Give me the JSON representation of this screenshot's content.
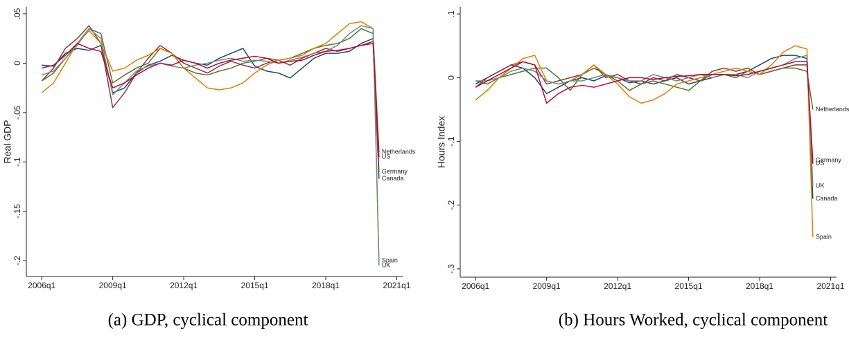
{
  "chart_data": [
    {
      "type": "line",
      "y_label": "Real GDP",
      "caption": "(a) GDP, cyclical component",
      "x": [
        2006,
        2006.5,
        2007,
        2007.5,
        2008,
        2008.5,
        2009,
        2009.5,
        2010,
        2010.5,
        2011,
        2011.5,
        2012,
        2012.5,
        2013,
        2013.5,
        2014,
        2014.5,
        2015,
        2015.5,
        2016,
        2016.5,
        2017,
        2017.5,
        2018,
        2018.5,
        2019,
        2019.5,
        2020,
        2020.25
      ],
      "xlim": [
        2005.35,
        2021.25
      ],
      "xticks": [
        {
          "value": 2006,
          "label": "2006q1"
        },
        {
          "value": 2009,
          "label": "2009q1"
        },
        {
          "value": 2012,
          "label": "2012q1"
        },
        {
          "value": 2015,
          "label": "2015q1"
        },
        {
          "value": 2018,
          "label": "2018q1"
        },
        {
          "value": 2021,
          "label": "2021q1"
        }
      ],
      "ylim": [
        -0.216,
        0.057
      ],
      "yticks": [
        {
          "value": 0.05,
          "label": ".05"
        },
        0,
        {
          "value": -0.05,
          "label": "-.05"
        },
        {
          "value": -0.1,
          "label": "-.1"
        },
        {
          "value": -0.15,
          "label": "-.15"
        },
        {
          "value": -0.2,
          "label": "-.2"
        }
      ],
      "series": [
        {
          "name": "Canada",
          "color": "#1a476f",
          "values": [
            -0.002,
            -0.003,
            0.01,
            0.015,
            0.013,
            0.018,
            -0.03,
            -0.025,
            -0.01,
            -0.002,
            0.002,
            0.008,
            0.003,
            0,
            -0.002,
            0.005,
            0.01,
            0.015,
            -0.003,
            -0.008,
            -0.01,
            -0.015,
            -0.005,
            0.005,
            0.01,
            0.01,
            0.012,
            0.02,
            0.025,
            -0.117
          ]
        },
        {
          "name": "Germany",
          "color": "#90353b",
          "values": [
            -0.018,
            -0.005,
            0.015,
            0.025,
            0.038,
            0.02,
            -0.045,
            -0.03,
            -0.01,
            0.005,
            0.018,
            0.01,
            0,
            -0.005,
            -0.01,
            -0.003,
            0.002,
            -0.002,
            -0.005,
            0,
            0.003,
            -0.002,
            0.005,
            0.01,
            0.015,
            0.012,
            0.015,
            0.018,
            0.022,
            -0.11
          ]
        },
        {
          "name": "Netherlands",
          "color": "#55752f",
          "values": [
            -0.018,
            -0.01,
            0.005,
            0.02,
            0.035,
            0.03,
            -0.02,
            -0.012,
            -0.005,
            0,
            0.015,
            0.01,
            -0.005,
            -0.01,
            -0.012,
            -0.008,
            -0.005,
            0,
            0.002,
            0.005,
            0.003,
            0.005,
            0.01,
            0.015,
            0.018,
            0.02,
            0.025,
            0.035,
            0.03,
            -0.09
          ]
        },
        {
          "name": "Spain",
          "color": "#e37e00",
          "values": [
            -0.03,
            -0.02,
            0,
            0.02,
            0.033,
            0.02,
            -0.008,
            -0.005,
            0.003,
            0.008,
            0.015,
            0.01,
            -0.005,
            -0.015,
            -0.025,
            -0.027,
            -0.025,
            -0.02,
            -0.01,
            -0.002,
            0.003,
            0.005,
            0.008,
            0.015,
            0.02,
            0.03,
            0.04,
            0.042,
            0.035,
            -0.2
          ]
        },
        {
          "name": "UK",
          "color": "#6e8e84",
          "values": [
            -0.012,
            -0.008,
            0.005,
            0.018,
            0.035,
            0.025,
            -0.032,
            -0.02,
            -0.008,
            -0.003,
            0,
            -0.003,
            -0.005,
            -0.002,
            0,
            0.003,
            0.005,
            0.002,
            0.003,
            0.002,
            0,
            0.003,
            0.006,
            0.01,
            0.012,
            0.018,
            0.03,
            0.038,
            0.035,
            -0.205
          ]
        },
        {
          "name": "US",
          "color": "#c10534",
          "values": [
            -0.005,
            -0.002,
            0.008,
            0.02,
            0.015,
            0.012,
            -0.025,
            -0.02,
            -0.012,
            -0.005,
            0,
            -0.002,
            0.003,
            0,
            -0.005,
            0,
            0.003,
            0.005,
            0.007,
            0.005,
            0,
            0.002,
            0.003,
            0.008,
            0.012,
            0.013,
            0.015,
            0.018,
            0.02,
            -0.095
          ]
        }
      ]
    },
    {
      "type": "line",
      "y_label": "Hours Index",
      "caption": "(b) Hours Worked, cyclical component",
      "x": [
        2006,
        2006.5,
        2007,
        2007.5,
        2008,
        2008.5,
        2009,
        2009.5,
        2010,
        2010.5,
        2011,
        2011.5,
        2012,
        2012.5,
        2013,
        2013.5,
        2014,
        2014.5,
        2015,
        2015.5,
        2016,
        2016.5,
        2017,
        2017.5,
        2018,
        2018.5,
        2019,
        2019.5,
        2020,
        2020.25
      ],
      "xlim": [
        2005.35,
        2021.25
      ],
      "xticks": [
        {
          "value": 2006,
          "label": "2006q1"
        },
        {
          "value": 2009,
          "label": "2009q1"
        },
        {
          "value": 2012,
          "label": "2012q1"
        },
        {
          "value": 2015,
          "label": "2015q1"
        },
        {
          "value": 2018,
          "label": "2018q1"
        },
        {
          "value": 2021,
          "label": "2021q1"
        }
      ],
      "ylim": [
        -0.313,
        0.111
      ],
      "yticks": [
        {
          "value": 0.1,
          "label": ".1"
        },
        0,
        {
          "value": -0.1,
          "label": "-.1"
        },
        {
          "value": -0.2,
          "label": "-.2"
        },
        {
          "value": -0.3,
          "label": "-.3"
        }
      ],
      "series": [
        {
          "name": "Canada",
          "color": "#1a476f",
          "values": [
            -0.01,
            0,
            0.01,
            0.02,
            0.015,
            0,
            -0.025,
            -0.015,
            -0.005,
            0,
            -0.005,
            0.003,
            0,
            -0.008,
            -0.005,
            -0.01,
            -0.005,
            0,
            -0.01,
            -0.005,
            0,
            0.005,
            0.005,
            0.01,
            0.02,
            0.03,
            0.035,
            0.035,
            0.03,
            -0.19
          ]
        },
        {
          "name": "Germany",
          "color": "#90353b",
          "values": [
            -0.015,
            0,
            0.01,
            0.02,
            0.025,
            0.02,
            -0.01,
            -0.005,
            0,
            0.005,
            0.02,
            0,
            0.005,
            -0.005,
            -0.01,
            0,
            -0.005,
            0.005,
            0,
            -0.005,
            0.01,
            0.015,
            0.01,
            0.015,
            0.005,
            0.01,
            0.015,
            0.02,
            0.02,
            -0.13
          ]
        },
        {
          "name": "Netherlands",
          "color": "#55752f",
          "values": [
            -0.005,
            -0.01,
            0,
            0.005,
            0.01,
            0.015,
            0.015,
            0,
            -0.02,
            0.005,
            0.015,
            0.005,
            -0.005,
            -0.02,
            -0.01,
            -0.005,
            -0.01,
            -0.015,
            -0.02,
            -0.005,
            0.005,
            0.005,
            0,
            0.01,
            0.005,
            0.01,
            0.015,
            0.015,
            0.01,
            -0.05
          ]
        },
        {
          "name": "Spain",
          "color": "#e37e00",
          "values": [
            -0.035,
            -0.02,
            0,
            0.015,
            0.03,
            0.035,
            -0.005,
            -0.01,
            -0.005,
            0.005,
            0.02,
            0.005,
            -0.01,
            -0.03,
            -0.04,
            -0.035,
            -0.025,
            -0.01,
            -0.005,
            0,
            0.005,
            0.01,
            0.015,
            0.01,
            0.005,
            0.02,
            0.04,
            0.05,
            0.045,
            -0.25
          ]
        },
        {
          "name": "UK",
          "color": "#6e8e84",
          "values": [
            -0.005,
            -0.005,
            0,
            0.01,
            0.015,
            0.01,
            -0.005,
            -0.01,
            -0.005,
            -0.005,
            0,
            0.005,
            0,
            -0.005,
            -0.005,
            0.005,
            0,
            -0.005,
            0,
            0.005,
            0,
            0.005,
            0.005,
            0,
            0.01,
            0.015,
            0.02,
            0.03,
            0.035,
            -0.17
          ]
        },
        {
          "name": "US",
          "color": "#c10534",
          "values": [
            -0.015,
            -0.005,
            0.005,
            0.015,
            0.025,
            0.02,
            -0.04,
            -0.025,
            -0.015,
            -0.012,
            -0.015,
            -0.01,
            -0.005,
            0,
            0,
            -0.003,
            0,
            0.002,
            0.003,
            0.005,
            0.005,
            0.005,
            0.003,
            0.005,
            0.01,
            0.015,
            0.02,
            0.025,
            0.025,
            -0.135
          ]
        }
      ]
    }
  ]
}
